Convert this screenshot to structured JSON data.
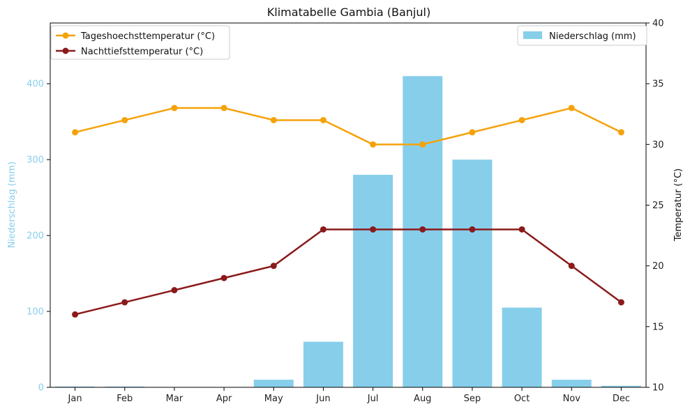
{
  "chart_data": {
    "type": "bar+line",
    "title": "Klimatabelle Gambia (Banjul)",
    "categories": [
      "Jan",
      "Feb",
      "Mar",
      "Apr",
      "May",
      "Jun",
      "Jul",
      "Aug",
      "Sep",
      "Oct",
      "Nov",
      "Dec"
    ],
    "y_left": {
      "label": "Niederschlag (mm)",
      "range": [
        0,
        480
      ],
      "ticks": [
        0,
        100,
        200,
        300,
        400
      ],
      "color": "#87ceeb"
    },
    "y_right": {
      "label": "Temperatur (°C)",
      "range": [
        10,
        40
      ],
      "ticks": [
        10,
        15,
        20,
        25,
        30,
        35,
        40
      ]
    },
    "bars": {
      "name": "Niederschlag (mm)",
      "color": "#87ceeb",
      "values": [
        1,
        1,
        0,
        0,
        10,
        60,
        280,
        410,
        300,
        105,
        10,
        2
      ]
    },
    "series": [
      {
        "name": "Tageshoechsttemperatur (°C)",
        "color": "#f5a20a",
        "values": [
          31,
          32,
          33,
          33,
          32,
          32,
          30,
          30,
          31,
          32,
          33,
          31
        ]
      },
      {
        "name": "Nachttiefsttemperatur (°C)",
        "color": "#8b1a1a",
        "values": [
          16,
          17,
          18,
          19,
          20,
          23,
          23,
          23,
          23,
          23,
          20,
          17
        ]
      }
    ],
    "legend_lines_position": "top-left",
    "legend_bars_position": "top-right",
    "grid": false
  }
}
